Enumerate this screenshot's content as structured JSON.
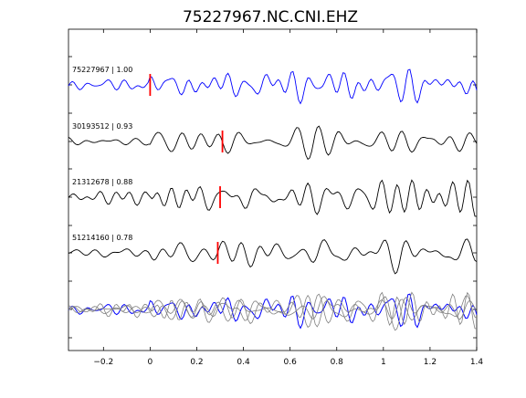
{
  "chart_data": {
    "type": "line",
    "title": "75227967.NC.CNI.EHZ",
    "xlabel": "",
    "ylabel": "",
    "xlim": [
      -0.35,
      1.4
    ],
    "xticks": [
      -0.2,
      0,
      0.2,
      0.4,
      0.6,
      0.8,
      1,
      1.2,
      1.4
    ],
    "xtick_labels": [
      "−0.2",
      "0",
      "0.2",
      "0.4",
      "0.6",
      "0.8",
      "1",
      "1.2",
      "1.4"
    ],
    "grid": false,
    "colors": {
      "reference": "#0000ff",
      "trace": "#000000",
      "overlay": "#808080",
      "pick": "#ff0000",
      "axes": "#000000"
    },
    "series": [
      {
        "name": "75227967 | 1.00",
        "color": "#0000ff",
        "pick": 0.0,
        "seed": 1
      },
      {
        "name": "30193512 | 0.93",
        "color": "#000000",
        "pick": 0.31,
        "seed": 2
      },
      {
        "name": "21312678 | 0.88",
        "color": "#000000",
        "pick": 0.3,
        "seed": 3
      },
      {
        "name": "51214160 | 0.78",
        "color": "#000000",
        "pick": 0.29,
        "seed": 4
      }
    ],
    "stack_overlay": true
  }
}
